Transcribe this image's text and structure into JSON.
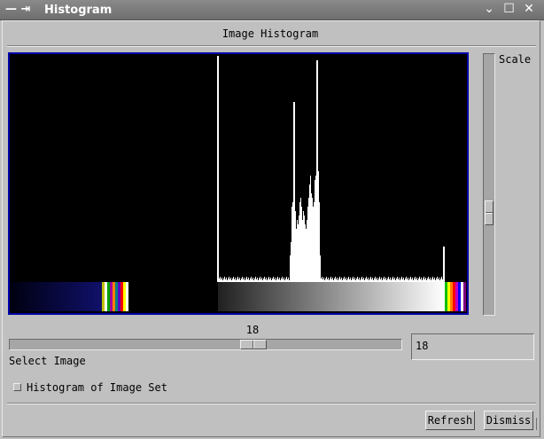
{
  "window": {
    "title": "Histogram",
    "menu_glyph": "— ⇥",
    "controls": [
      "⌄",
      "☐",
      "✕"
    ]
  },
  "header": {
    "label": "Image Histogram"
  },
  "scale": {
    "label": "Scale",
    "level_fraction": 0.59
  },
  "image_slider": {
    "value": "18",
    "position_fraction": 0.63
  },
  "select_image_label": "Select Image",
  "image_entry": {
    "value": "18"
  },
  "histogram_set": {
    "label": "Histogram of Image Set",
    "checked": false
  },
  "buttons": {
    "refresh": "Refresh",
    "dismiss": "Dismiss"
  },
  "colors": {
    "canvas_border": "#0000a8",
    "window_bg": "#c0c0c0",
    "titlebar": "#7a7a7a"
  }
}
